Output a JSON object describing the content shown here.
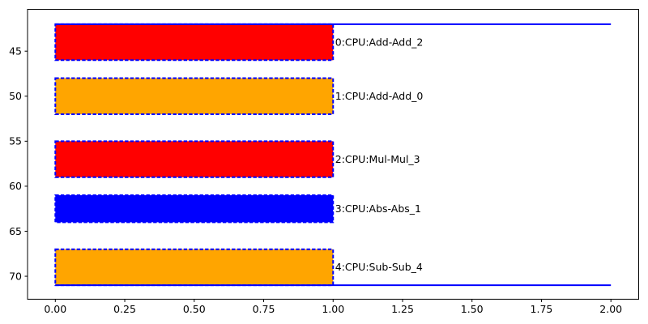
{
  "chart_data": {
    "type": "bar",
    "orientation": "horizontal",
    "title": "",
    "xlabel": "",
    "ylabel": "",
    "background": "#ffffff",
    "frame_color": "#000000",
    "xlim": [
      -0.1,
      2.1
    ],
    "ylim_top": 40.35,
    "ylim_bottom": 72.55,
    "y_axis_inverted": true,
    "x_ticks": [
      {
        "value": 0.0,
        "label": "0.00"
      },
      {
        "value": 0.25,
        "label": "0.25"
      },
      {
        "value": 0.5,
        "label": "0.50"
      },
      {
        "value": 0.75,
        "label": "0.75"
      },
      {
        "value": 1.0,
        "label": "1.00"
      },
      {
        "value": 1.25,
        "label": "1.25"
      },
      {
        "value": 1.5,
        "label": "1.50"
      },
      {
        "value": 1.75,
        "label": "1.75"
      },
      {
        "value": 2.0,
        "label": "2.00"
      }
    ],
    "y_ticks": [
      {
        "value": 45,
        "label": "45"
      },
      {
        "value": 50,
        "label": "50"
      },
      {
        "value": 55,
        "label": "55"
      },
      {
        "value": 60,
        "label": "60"
      },
      {
        "value": 65,
        "label": "65"
      },
      {
        "value": 70,
        "label": "70"
      }
    ],
    "bars": [
      {
        "label": "0:CPU:Add-Add_2",
        "x_start": 0.0,
        "x_end": 1.0,
        "y_start": 42,
        "y_end": 46,
        "color": "#ff0000"
      },
      {
        "label": "1:CPU:Add-Add_0",
        "x_start": 0.0,
        "x_end": 1.0,
        "y_start": 48,
        "y_end": 52,
        "color": "#ffa500"
      },
      {
        "label": "2:CPU:Mul-Mul_3",
        "x_start": 0.0,
        "x_end": 1.0,
        "y_start": 55,
        "y_end": 59,
        "color": "#ff0000"
      },
      {
        "label": "3:CPU:Abs-Abs_1",
        "x_start": 0.0,
        "x_end": 1.0,
        "y_start": 61,
        "y_end": 64,
        "color": "#0000ff"
      },
      {
        "label": "4:CPU:Sub-Sub_4",
        "x_start": 0.0,
        "x_end": 1.0,
        "y_start": 67,
        "y_end": 71,
        "color": "#ffa500"
      }
    ],
    "bar_edge": {
      "color": "#0000ff",
      "style": "dashed",
      "width": 2
    },
    "hlines": [
      {
        "y": 42,
        "x_start": 0.0,
        "x_end": 2.0,
        "color": "#0000ff",
        "width": 2
      },
      {
        "y": 71,
        "x_start": 0.0,
        "x_end": 2.0,
        "color": "#0000ff",
        "width": 2
      }
    ],
    "legend": null,
    "grid": false
  }
}
